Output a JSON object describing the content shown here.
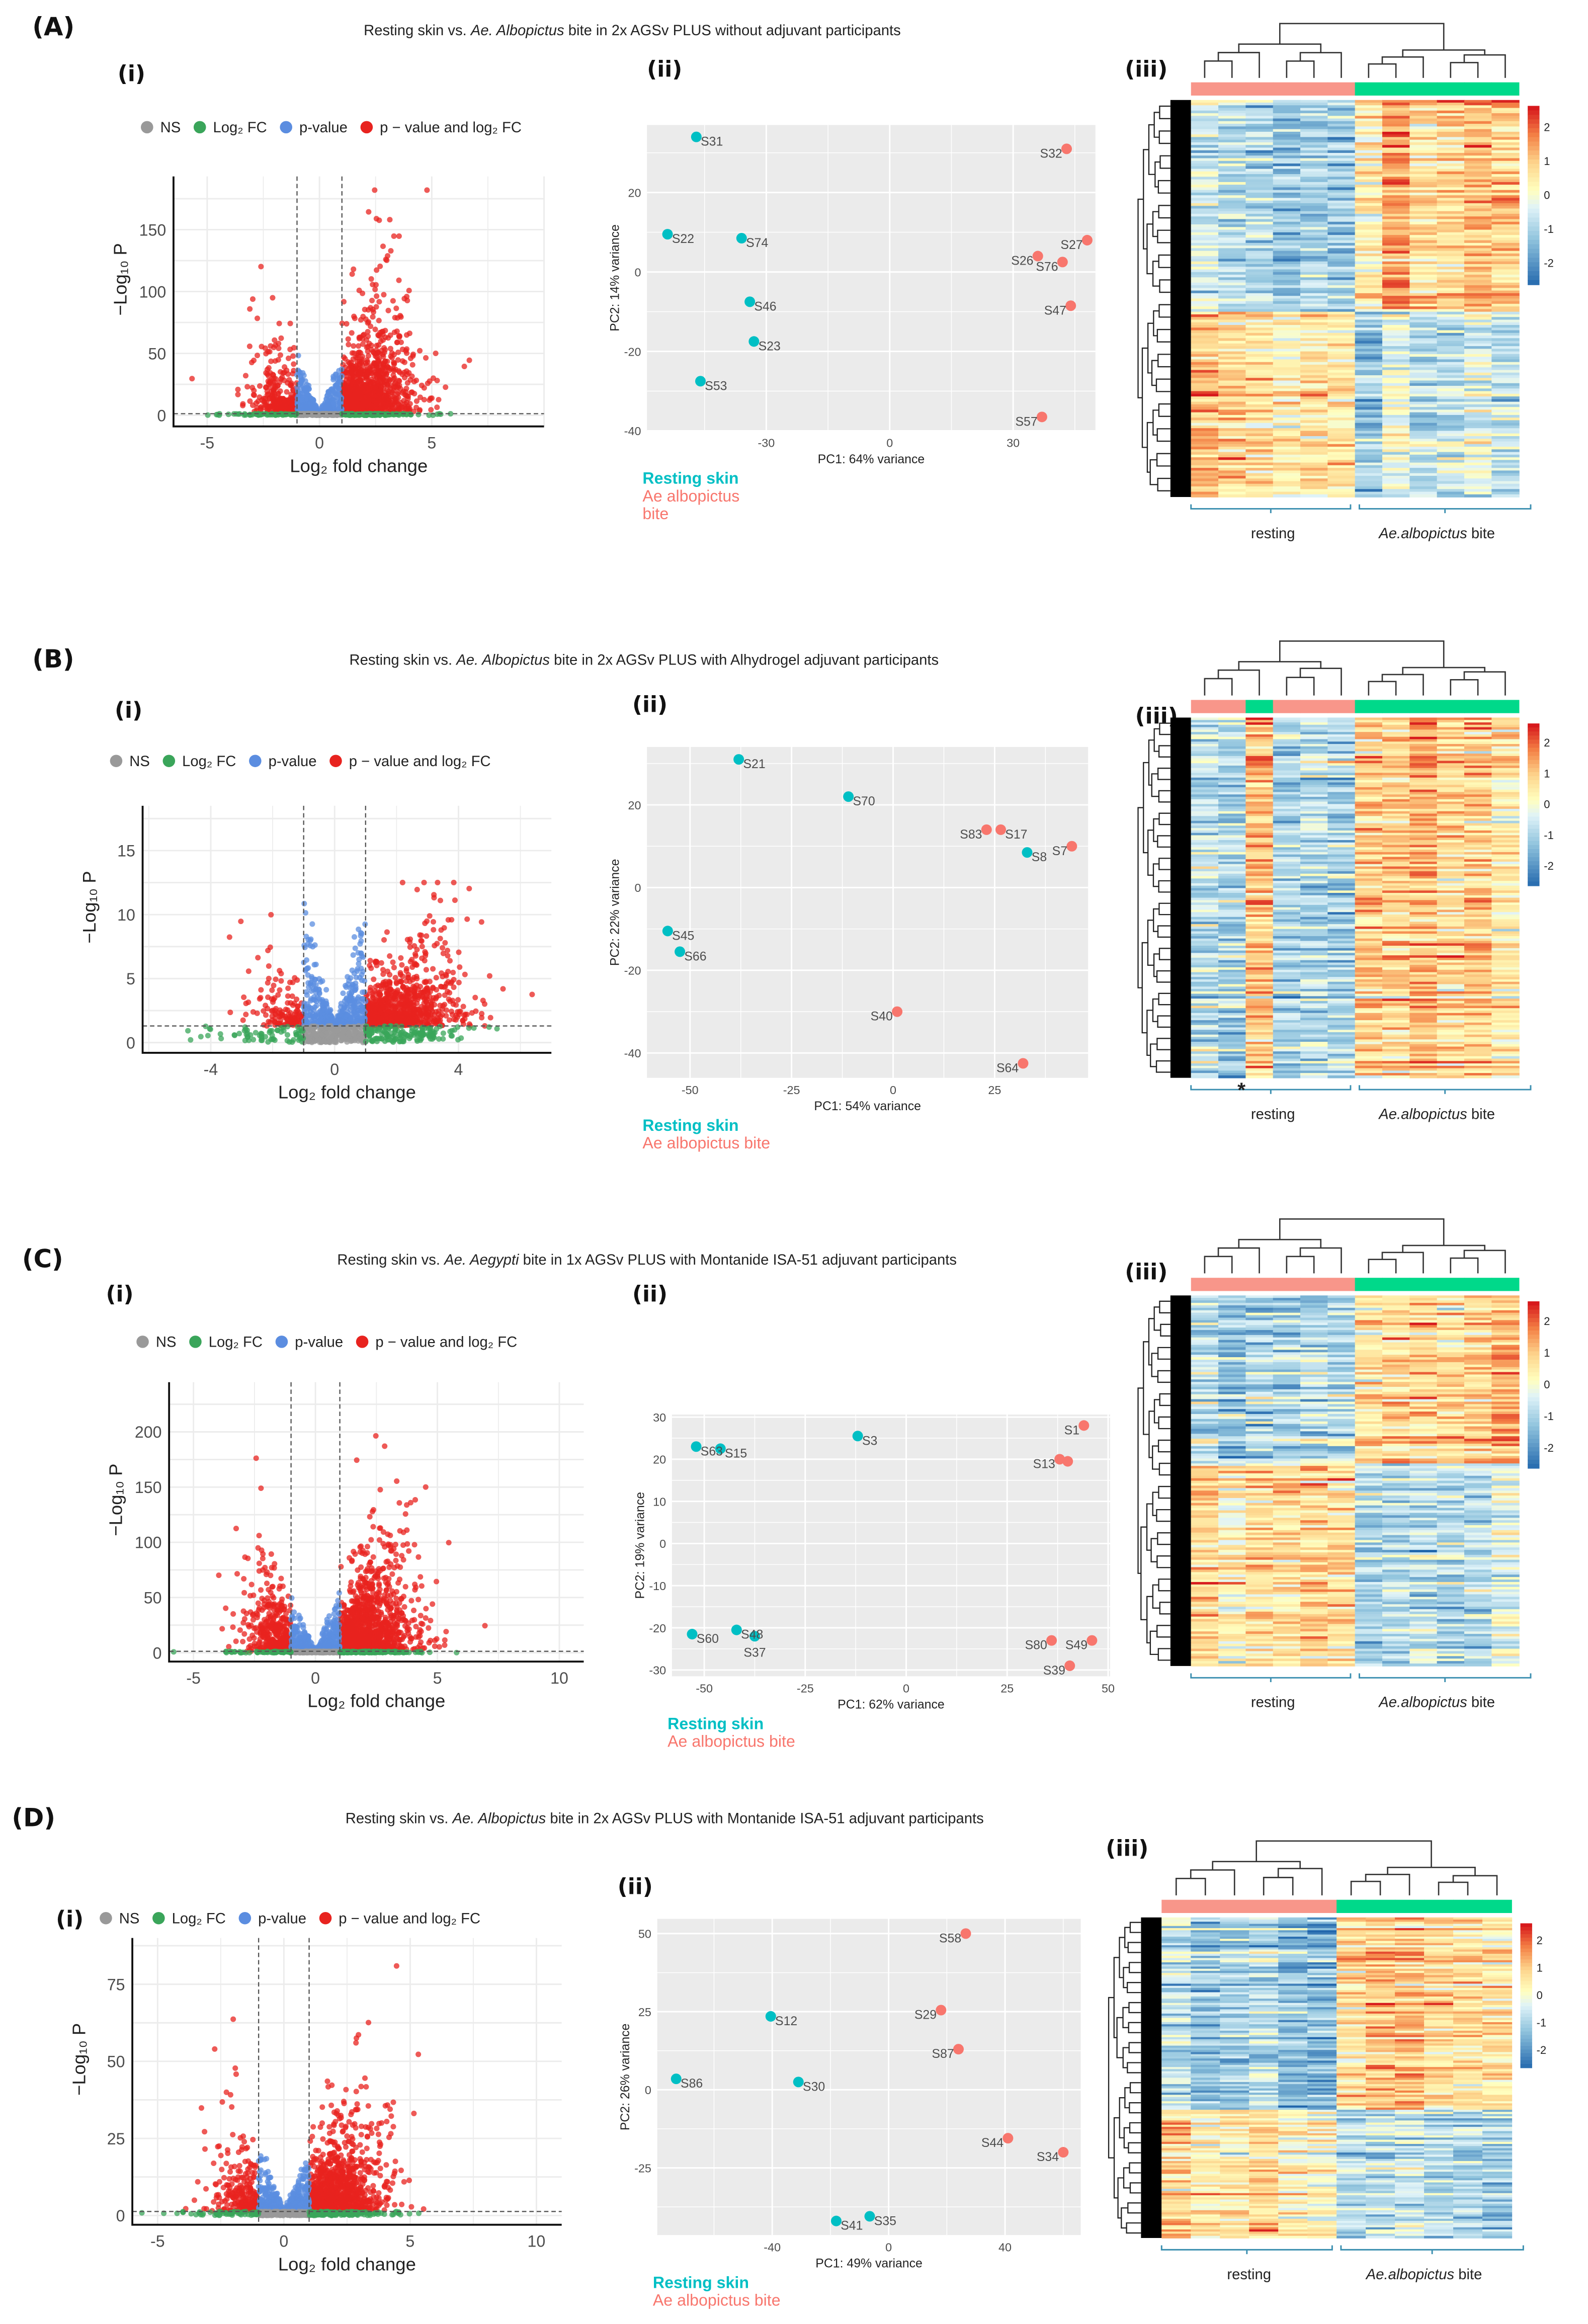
{
  "colors": {
    "ns": "#999999",
    "fc": "#3aa55a",
    "p": "#5b8de0",
    "both": "#e8231f",
    "resting": "#00bfc4",
    "bite": "#f8766d",
    "bar_resting": "#f8968a",
    "bar_bite": "#00d98a"
  },
  "rows": [
    {
      "label": "(A)",
      "title": {
        "pre": "Resting skin vs. ",
        "italic": "Ae. Albopictus",
        "post": " bite in 2x AGSv PLUS without adjuvant participants"
      },
      "sub": [
        "(i)",
        "(ii)",
        "(iii)"
      ]
    },
    {
      "label": "(B)",
      "title": {
        "pre": "Resting skin vs. ",
        "italic": "Ae. Albopictus",
        "post": " bite in 2x AGSv PLUS with Alhydrogel adjuvant participants"
      },
      "sub": [
        "(i)",
        "(ii)",
        "(iii)"
      ]
    },
    {
      "label": "(C)",
      "title": {
        "pre": "Resting skin vs. ",
        "italic": "Ae. Aegypti",
        "post": " bite in 1x AGSv PLUS with Montanide ISA-51 adjuvant participants"
      },
      "sub": [
        "(i)",
        "(ii)",
        "(iii)"
      ]
    },
    {
      "label": "(D)",
      "title": {
        "pre": "Resting skin vs. ",
        "italic": "Ae. Albopictus",
        "post": " bite in 2x AGSv PLUS with Montanide ISA-51 adjuvant participants"
      },
      "sub": [
        "(i)",
        "(ii)",
        "(iii)"
      ]
    }
  ],
  "chart_data": [
    {
      "type": "scatter",
      "kind": "volcano",
      "legend": [
        "NS",
        "Log₂ FC",
        "p-value",
        "p − value and log₂ FC"
      ],
      "xlabel": "Log₂ fold change",
      "ylabel": "−Log₁₀ P",
      "xlim": [
        -6.5,
        10
      ],
      "ylim": [
        -9,
        193
      ],
      "xticks": [
        -5,
        0,
        5
      ],
      "yticks": [
        0,
        50,
        100,
        150
      ],
      "fc_cutoff": 1,
      "p_cutoff_log10": 1.3,
      "n_up": 1300,
      "n_down": 320,
      "spread": 22,
      "blue_max": 35,
      "max_y": 182
    },
    {
      "type": "scatter",
      "kind": "pca",
      "xlabel": "PC1: 64% variance",
      "ylabel": "PC2: 14% variance",
      "xlim": [
        -59,
        50
      ],
      "ylim": [
        -40,
        37
      ],
      "xticks": [
        -30,
        0,
        30
      ],
      "yticks": [
        -40,
        -20,
        0,
        20
      ],
      "legend": [
        "Resting skin",
        "Ae albopictus",
        "bite"
      ],
      "points": [
        {
          "name": "S31",
          "group": "resting",
          "x": -47,
          "y": 34
        },
        {
          "name": "S22",
          "group": "resting",
          "x": -54,
          "y": 9.5
        },
        {
          "name": "S74",
          "group": "resting",
          "x": -36,
          "y": 8.5
        },
        {
          "name": "S46",
          "group": "resting",
          "x": -34,
          "y": -7.5
        },
        {
          "name": "S23",
          "group": "resting",
          "x": -33,
          "y": -17.5
        },
        {
          "name": "S53",
          "group": "resting",
          "x": -46,
          "y": -27.5
        },
        {
          "name": "S32",
          "group": "bite",
          "x": 43,
          "y": 31
        },
        {
          "name": "S27",
          "group": "bite",
          "x": 48,
          "y": 8
        },
        {
          "name": "S26",
          "group": "bite",
          "x": 36,
          "y": 4
        },
        {
          "name": "S76",
          "group": "bite",
          "x": 42,
          "y": 2.5
        },
        {
          "name": "S47",
          "group": "bite",
          "x": 44,
          "y": -8.5
        },
        {
          "name": "S57",
          "group": "bite",
          "x": 37,
          "y": -36.5
        }
      ]
    },
    {
      "type": "heatmap",
      "columns": [
        "r",
        "r",
        "r",
        "r",
        "r",
        "r",
        "b",
        "b",
        "b",
        "b",
        "b",
        "b"
      ],
      "up_fraction": 0.53,
      "colorbar_ticks": [
        "2",
        "1",
        "0",
        "-1",
        "-2"
      ],
      "groups": {
        "resting": "resting",
        "bite_italic": "Ae.albopictus",
        "bite_post": " bite"
      },
      "annotation": ""
    },
    {
      "type": "scatter",
      "kind": "volcano",
      "legend": [
        "NS",
        "Log₂ FC",
        "p-value",
        "p − value and log₂ FC"
      ],
      "xlabel": "Log₂ fold change",
      "ylabel": "−Log₁₀ P",
      "xlim": [
        -6.2,
        7
      ],
      "ylim": [
        -0.8,
        18.5
      ],
      "xticks": [
        -4,
        0,
        4
      ],
      "yticks": [
        0,
        5,
        10,
        15
      ],
      "fc_cutoff": 1,
      "p_cutoff_log10": 1.3,
      "n_up": 900,
      "n_down": 140,
      "spread": 1.9,
      "blue_max": 7,
      "max_y": 12.5
    },
    {
      "type": "scatter",
      "kind": "pca",
      "xlabel": "PC1: 54% variance",
      "ylabel": "PC2: 22% variance",
      "xlim": [
        -60.6,
        48
      ],
      "ylim": [
        -46,
        34
      ],
      "xticks": [
        -50,
        -25,
        0,
        25
      ],
      "yticks": [
        -40,
        -20,
        0,
        20
      ],
      "legend": [
        "Resting skin",
        "Ae albopictus bite"
      ],
      "points": [
        {
          "name": "S21",
          "group": "resting",
          "x": -38,
          "y": 31
        },
        {
          "name": "S70",
          "group": "resting",
          "x": -11,
          "y": 22
        },
        {
          "name": "S8",
          "group": "resting",
          "x": 33,
          "y": 8.5
        },
        {
          "name": "S45",
          "group": "resting",
          "x": -55.5,
          "y": -10.5
        },
        {
          "name": "S66",
          "group": "resting",
          "x": -52.5,
          "y": -15.5
        },
        {
          "name": "S83",
          "group": "bite",
          "x": 23,
          "y": 14
        },
        {
          "name": "S17",
          "group": "bite",
          "x": 26.5,
          "y": 14
        },
        {
          "name": "S7",
          "group": "bite",
          "x": 44,
          "y": 10
        },
        {
          "name": "S40",
          "group": "bite",
          "x": 1,
          "y": -30
        },
        {
          "name": "S64",
          "group": "bite",
          "x": 32,
          "y": -42.5
        }
      ]
    },
    {
      "type": "heatmap",
      "columns": [
        "r",
        "r",
        "b",
        "r",
        "r",
        "r",
        "b",
        "b",
        "b",
        "b",
        "b",
        "b"
      ],
      "up_fraction": 1.0,
      "colorbar_ticks": [
        "2",
        "1",
        "0",
        "-1",
        "-2"
      ],
      "groups": {
        "resting": "resting",
        "bite_italic": "Ae.albopictus",
        "bite_post": " bite"
      },
      "annotation": "*"
    },
    {
      "type": "scatter",
      "kind": "volcano",
      "legend": [
        "NS",
        "Log₂ FC",
        "p-value",
        "p − value and log₂ FC"
      ],
      "xlabel": "Log₂ fold change",
      "ylabel": "−Log₁₀ P",
      "xlim": [
        -6,
        11
      ],
      "ylim": [
        -8,
        245
      ],
      "xticks": [
        -5,
        0,
        5,
        10
      ],
      "yticks": [
        0,
        50,
        100,
        150,
        200
      ],
      "fc_cutoff": 1,
      "p_cutoff_log10": 1.3,
      "n_up": 1300,
      "n_down": 420,
      "spread": 26,
      "blue_max": 40,
      "max_y": 235
    },
    {
      "type": "scatter",
      "kind": "pca",
      "xlabel": "PC1: 62% variance",
      "ylabel": "PC2: 19% variance",
      "xlim": [
        -58,
        50.5
      ],
      "ylim": [
        -31.5,
        30.6
      ],
      "xticks": [
        -50,
        -25,
        0,
        25,
        50
      ],
      "yticks": [
        -30,
        -20,
        -10,
        0,
        10,
        20,
        30
      ],
      "legend": [
        "Resting skin",
        "Ae albopictus bite"
      ],
      "points": [
        {
          "name": "S63",
          "group": "resting",
          "x": -52,
          "y": 23
        },
        {
          "name": "S15",
          "group": "resting",
          "x": -46,
          "y": 22.5
        },
        {
          "name": "S3",
          "group": "resting",
          "x": -12,
          "y": 25.5
        },
        {
          "name": "S60",
          "group": "resting",
          "x": -53,
          "y": -21.5
        },
        {
          "name": "S48",
          "group": "resting",
          "x": -42,
          "y": -20.5
        },
        {
          "name": "S37",
          "group": "resting",
          "x": -37.5,
          "y": -22
        },
        {
          "name": "S1",
          "group": "bite",
          "x": 44,
          "y": 28
        },
        {
          "name": "S13",
          "group": "bite",
          "x": 38,
          "y": 20
        },
        {
          "name": "",
          "group": "bite",
          "x": 40,
          "y": 19.5
        },
        {
          "name": "S80",
          "group": "bite",
          "x": 36,
          "y": -23
        },
        {
          "name": "S49",
          "group": "bite",
          "x": 46,
          "y": -23
        },
        {
          "name": "S39",
          "group": "bite",
          "x": 40.5,
          "y": -29
        }
      ]
    },
    {
      "type": "heatmap",
      "columns": [
        "r",
        "r",
        "r",
        "r",
        "r",
        "r",
        "b",
        "b",
        "b",
        "b",
        "b",
        "b"
      ],
      "up_fraction": 0.45,
      "colorbar_ticks": [
        "2",
        "1",
        "0",
        "-1",
        "-2"
      ],
      "groups": {
        "resting": "resting",
        "bite_italic": "Ae.albopictus",
        "bite_post": " bite"
      },
      "annotation": ""
    },
    {
      "type": "scatter",
      "kind": "volcano",
      "legend": [
        "NS",
        "Log₂ FC",
        "p-value",
        "p − value and log₂ FC"
      ],
      "xlabel": "Log₂ fold change",
      "ylabel": "−Log₁₀ P",
      "xlim": [
        -6,
        11
      ],
      "ylim": [
        -3,
        90
      ],
      "xticks": [
        -5,
        0,
        5,
        10
      ],
      "yticks": [
        0,
        25,
        50,
        75
      ],
      "fc_cutoff": 1,
      "p_cutoff_log10": 1.3,
      "n_up": 1100,
      "n_down": 260,
      "spread": 9,
      "blue_max": 16,
      "max_y": 83
    },
    {
      "type": "scatter",
      "kind": "pca",
      "xlabel": "PC1: 49% variance",
      "ylabel": "PC2: 26% variance",
      "xlim": [
        -79.5,
        66
      ],
      "ylim": [
        -46.5,
        54.7
      ],
      "xticks": [
        -40,
        0,
        40
      ],
      "yticks": [
        -25,
        0,
        25,
        50
      ],
      "legend": [
        "Resting skin",
        "Ae albopictus bite"
      ],
      "points": [
        {
          "name": "S12",
          "group": "resting",
          "x": -40.5,
          "y": 23.5
        },
        {
          "name": "S86",
          "group": "resting",
          "x": -73,
          "y": 3.5
        },
        {
          "name": "S30",
          "group": "resting",
          "x": -31,
          "y": 2.5
        },
        {
          "name": "S41",
          "group": "resting",
          "x": -18,
          "y": -42
        },
        {
          "name": "S35",
          "group": "resting",
          "x": -6.5,
          "y": -40.5
        },
        {
          "name": "S58",
          "group": "bite",
          "x": 26.5,
          "y": 50
        },
        {
          "name": "S29",
          "group": "bite",
          "x": 18,
          "y": 25.5
        },
        {
          "name": "S87",
          "group": "bite",
          "x": 24,
          "y": 13
        },
        {
          "name": "S44",
          "group": "bite",
          "x": 41,
          "y": -15.5
        },
        {
          "name": "S34",
          "group": "bite",
          "x": 60,
          "y": -20
        }
      ]
    },
    {
      "type": "heatmap",
      "columns": [
        "r",
        "r",
        "r",
        "r",
        "r",
        "r",
        "b",
        "b",
        "b",
        "b",
        "b",
        "b"
      ],
      "up_fraction": 0.6,
      "colorbar_ticks": [
        "2",
        "1",
        "0",
        "-1",
        "-2"
      ],
      "groups": {
        "resting": "resting",
        "bite_italic": "Ae.albopictus",
        "bite_post": " bite"
      },
      "annotation": ""
    }
  ]
}
